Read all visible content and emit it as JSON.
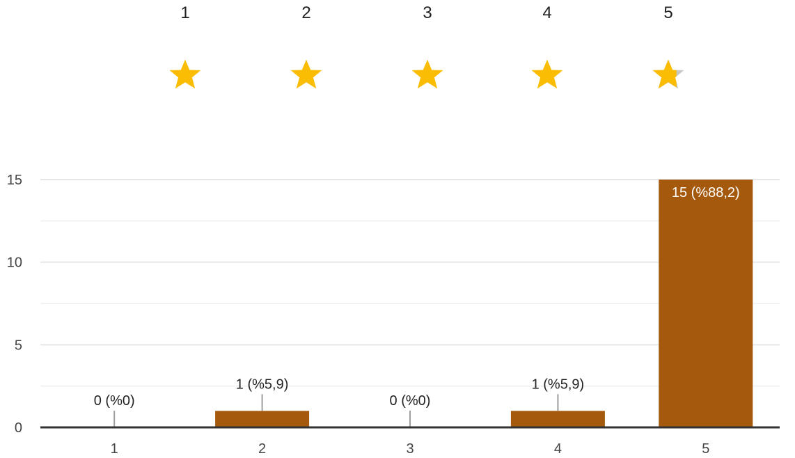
{
  "rating_scale": {
    "labels": [
      "1",
      "2",
      "3",
      "4",
      "5"
    ],
    "average_rating": 4.76,
    "star_color": "#fbbc04",
    "empty_star_color": "#c6c6c6",
    "icon": "star-icon"
  },
  "chart_data": {
    "type": "bar",
    "categories": [
      "1",
      "2",
      "3",
      "4",
      "5"
    ],
    "values": [
      0,
      1,
      0,
      1,
      15
    ],
    "data_labels": [
      "0 (%0)",
      "1 (%5,9)",
      "0 (%0)",
      "1 (%5,9)",
      "15 (%88,2)"
    ],
    "y_ticks": [
      "0",
      "5",
      "10",
      "15"
    ],
    "ylim": [
      0,
      15
    ],
    "grid": true,
    "bar_color": "#a5590d",
    "title": "",
    "xlabel": "",
    "ylabel": ""
  }
}
